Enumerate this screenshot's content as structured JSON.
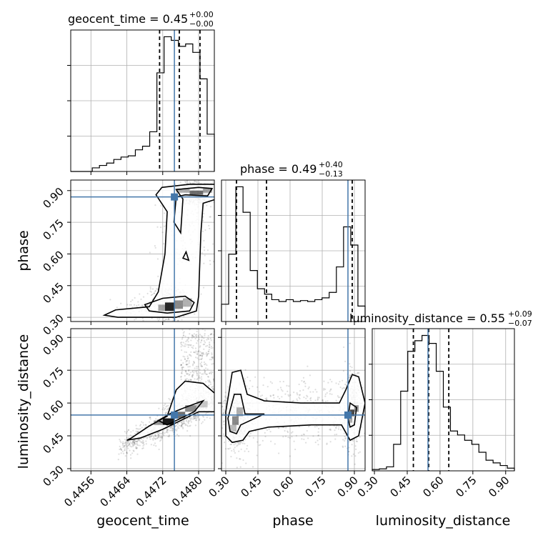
{
  "chart_data": {
    "type": "corner",
    "parameters": [
      "geocent_time",
      "phase",
      "luminosity_distance"
    ],
    "truths": {
      "geocent_time": 0.44746,
      "phase": 0.87,
      "luminosity_distance": 0.545
    },
    "ranges": {
      "geocent_time": [
        0.44515,
        0.44835
      ],
      "phase": [
        0.28,
        0.95
      ],
      "luminosity_distance": [
        0.29,
        0.94
      ]
    },
    "ticks": {
      "geocent_time": {
        "values": [
          0.4456,
          0.4464,
          0.4472,
          0.448
        ],
        "labels": [
          "0.4456",
          "0.4464",
          "0.4472",
          "0.4480"
        ]
      },
      "phase": {
        "values": [
          0.3,
          0.45,
          0.6,
          0.75,
          0.9
        ],
        "labels": [
          "0.30",
          "0.45",
          "0.60",
          "0.75",
          "0.90"
        ]
      },
      "luminosity_distance": {
        "values": [
          0.3,
          0.45,
          0.6,
          0.75,
          0.9
        ],
        "labels": [
          "0.30",
          "0.45",
          "0.60",
          "0.75",
          "0.90"
        ]
      }
    },
    "titles": [
      {
        "name": "geocent_time",
        "prefix": "geocent_time = 0.45",
        "plus": "+0.00",
        "minus": "−0.00"
      },
      {
        "name": "phase",
        "prefix": "phase = 0.49",
        "plus": "+0.40",
        "minus": "−0.13"
      },
      {
        "name": "luminosity_distance",
        "prefix": "luminosity_distance = 0.55",
        "plus": "+0.09",
        "minus": "−0.07"
      }
    ],
    "axis_labels": {
      "x": [
        "geocent_time",
        "phase",
        "luminosity_distance"
      ],
      "y": [
        "phase",
        "luminosity_distance"
      ]
    },
    "quantiles": {
      "geocent_time": [
        0.44713,
        0.44757,
        0.44803
      ],
      "phase": [
        0.35,
        0.49,
        0.89
      ],
      "luminosity_distance": [
        0.478,
        0.548,
        0.64
      ]
    },
    "histograms": {
      "geocent_time": {
        "bins": [
          0.44515,
          0.44531,
          0.44547,
          0.44563,
          0.44579,
          0.44595,
          0.44611,
          0.44627,
          0.44643,
          0.44659,
          0.44675,
          0.44691,
          0.44707,
          0.44723,
          0.44739,
          0.44755,
          0.44771,
          0.44787,
          0.44803,
          0.44819,
          0.44835
        ],
        "counts": [
          0,
          0,
          0,
          0.3,
          0.5,
          0.7,
          1.0,
          1.2,
          1.3,
          1.8,
          2.1,
          3.3,
          8.2,
          11.2,
          10.9,
          10.4,
          10.6,
          9.9,
          7.7,
          3.1
        ]
      },
      "phase": {
        "bins": [
          0.28,
          0.3135,
          0.347,
          0.3805,
          0.414,
          0.4475,
          0.481,
          0.5145,
          0.548,
          0.5815,
          0.615,
          0.6485,
          0.682,
          0.7155,
          0.749,
          0.7825,
          0.816,
          0.8495,
          0.883,
          0.9165,
          0.95
        ],
        "counts": [
          0.95,
          3.7,
          7.4,
          6.0,
          2.8,
          1.8,
          1.5,
          1.2,
          1.1,
          1.2,
          1.1,
          1.15,
          1.1,
          1.2,
          1.3,
          1.6,
          3.0,
          5.2,
          4.2,
          0.85
        ]
      },
      "luminosity_distance": {
        "bins": [
          0.29,
          0.3225,
          0.355,
          0.3875,
          0.42,
          0.4525,
          0.485,
          0.5175,
          0.55,
          0.5825,
          0.615,
          0.6475,
          0.68,
          0.7125,
          0.745,
          0.7775,
          0.81,
          0.8425,
          0.875,
          0.9075,
          0.94
        ],
        "counts": [
          0.1,
          0.15,
          0.3,
          2.0,
          6.0,
          9.0,
          9.8,
          10.2,
          9.6,
          7.5,
          4.8,
          3.0,
          2.7,
          2.3,
          2.0,
          1.4,
          0.8,
          0.6,
          0.4,
          0.2
        ]
      }
    }
  }
}
